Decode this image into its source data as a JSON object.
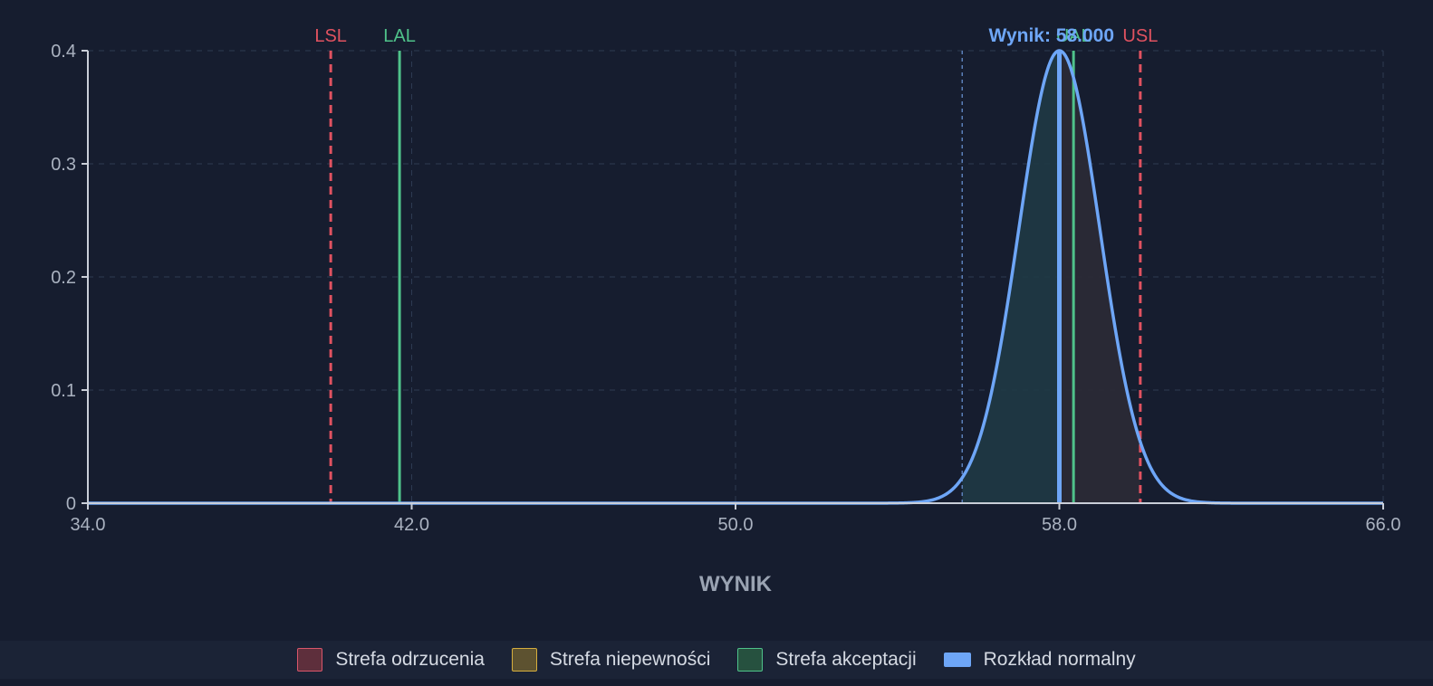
{
  "chart_data": {
    "type": "line",
    "xlabel": "WYNIK",
    "ylabel": "",
    "xlim": [
      34.0,
      66.0
    ],
    "ylim": [
      0,
      0.4
    ],
    "x_ticks": [
      "34.0",
      "42.0",
      "50.0",
      "58.0",
      "66.0"
    ],
    "x_tick_values": [
      34,
      42,
      50,
      58,
      66
    ],
    "y_ticks": [
      "0",
      "0.1",
      "0.2",
      "0.3",
      "0.4"
    ],
    "y_tick_values": [
      0,
      0.1,
      0.2,
      0.3,
      0.4
    ],
    "grid": true,
    "distribution": {
      "name": "Rozkład normalny",
      "mean": 58.0,
      "sd": 1.0,
      "peak": 0.4
    },
    "uncertainty_band": [
      55.6,
      60.0
    ],
    "limits": [
      {
        "label": "LSL",
        "value": 40.0,
        "color": "#e05260",
        "style": "dashed"
      },
      {
        "label": "LAL",
        "value": 41.7,
        "color": "#4fc28a",
        "style": "solid"
      },
      {
        "label": "UAL",
        "value": 58.35,
        "color": "#4fc28a",
        "style": "solid"
      },
      {
        "label": "USL",
        "value": 60.0,
        "color": "#e05260",
        "style": "dashed"
      }
    ],
    "result": {
      "label": "Wynik: 58.000",
      "value": 58.0,
      "color": "#6ea6f7"
    }
  },
  "legend": {
    "position": "bottom",
    "items": [
      {
        "label": "Strefa odrzucenia",
        "swatch": "rej"
      },
      {
        "label": "Strefa niepewności",
        "swatch": "unc"
      },
      {
        "label": "Strefa akceptacji",
        "swatch": "acc"
      },
      {
        "label": "Rozkład normalny",
        "swatch": "norm"
      }
    ]
  },
  "colors": {
    "background": "#161d2f",
    "grid": "#2d3a52",
    "axis": "#c9ced8",
    "tick_text": "#aab2c0",
    "curve": "#6ea6f7"
  }
}
